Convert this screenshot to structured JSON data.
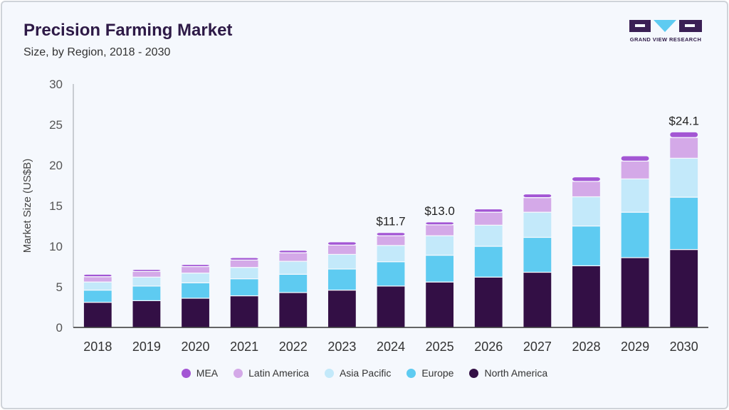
{
  "header": {
    "title": "Precision Farming Market",
    "subtitle": "Size, by Region, 2018 - 2030",
    "logo_text": "GRAND VIEW RESEARCH"
  },
  "chart_data": {
    "type": "bar",
    "stacked": true,
    "title": "Precision Farming Market",
    "subtitle": "Size, by Region, 2018 - 2030",
    "xlabel": "",
    "ylabel": "Market Size (US$B)",
    "ylim": [
      0,
      30
    ],
    "yticks": [
      0,
      5,
      10,
      15,
      20,
      25,
      30
    ],
    "grid": false,
    "legend_position": "bottom",
    "categories": [
      "2018",
      "2019",
      "2020",
      "2021",
      "2022",
      "2023",
      "2024",
      "2025",
      "2026",
      "2027",
      "2028",
      "2029",
      "2030"
    ],
    "series": [
      {
        "name": "North America",
        "color": "#330f45",
        "values": [
          3.1,
          3.3,
          3.6,
          3.9,
          4.3,
          4.6,
          5.1,
          5.6,
          6.2,
          6.8,
          7.6,
          8.6,
          9.6
        ]
      },
      {
        "name": "Europe",
        "color": "#5ecbf1",
        "values": [
          1.5,
          1.8,
          1.9,
          2.1,
          2.25,
          2.6,
          3.0,
          3.3,
          3.8,
          4.3,
          4.9,
          5.6,
          6.45
        ]
      },
      {
        "name": "Asia Pacific",
        "color": "#c3e9fa",
        "values": [
          1.0,
          1.1,
          1.2,
          1.4,
          1.6,
          1.8,
          2.0,
          2.4,
          2.6,
          3.1,
          3.6,
          4.1,
          4.8
        ]
      },
      {
        "name": "Latin America",
        "color": "#d4a9e8",
        "values": [
          0.65,
          0.7,
          0.8,
          0.9,
          1.05,
          1.15,
          1.2,
          1.35,
          1.6,
          1.8,
          1.9,
          2.2,
          2.55
        ]
      },
      {
        "name": "MEA",
        "color": "#a356d4",
        "values": [
          0.3,
          0.25,
          0.26,
          0.3,
          0.3,
          0.4,
          0.4,
          0.35,
          0.4,
          0.45,
          0.55,
          0.65,
          0.7
        ]
      }
    ],
    "data_labels": [
      {
        "category": "2024",
        "text": "$11.7"
      },
      {
        "category": "2025",
        "text": "$13.0"
      },
      {
        "category": "2030",
        "text": "$24.1"
      }
    ],
    "legend": [
      "MEA",
      "Latin America",
      "Asia Pacific",
      "Europe",
      "North America"
    ]
  }
}
